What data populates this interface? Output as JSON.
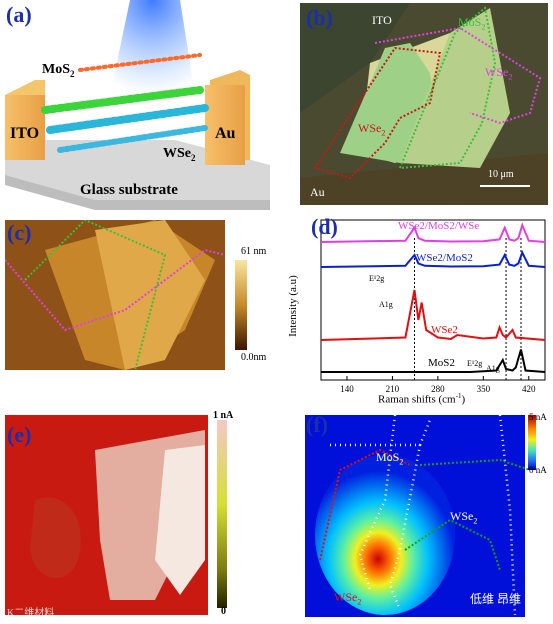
{
  "panels": {
    "a": {
      "label": "(a)",
      "mos2": "MoS",
      "mos2_sub": "2",
      "ito": "ITO",
      "au": "Au",
      "wse2": "WSe",
      "wse2_sub": "2",
      "substrate": "Glass substrate"
    },
    "b": {
      "label": "(b)",
      "ito": "ITO",
      "mos2": "MoS",
      "mos2_sub": "2",
      "wse2_right": "WSe",
      "wse2_right_sub": "2",
      "wse2_left": "WSe",
      "wse2_left_sub": "2",
      "au": "Au",
      "scalebar": "10 μm"
    },
    "c": {
      "label": "(c)",
      "cbar_max": "61 nm",
      "cbar_min": "0.0nm"
    },
    "d": {
      "label": "(d)",
      "ylabel": "Intensity (a.u)",
      "xlabel": "Raman shifts (cm",
      "xlabel_sup": "-1",
      "xlabel_close": ")",
      "series_labels": {
        "hetero_full": "WSe2/MoS2/WSe",
        "hetero": "WSe2/MoS2",
        "wse2": "WSe2",
        "mos2": "MoS2"
      },
      "peak_labels": {
        "e2g_wse2": "E¹2g",
        "a1g_wse2": "A1g",
        "e2g_mos2": "E¹2g",
        "a1g_mos2": "A1g"
      }
    },
    "e": {
      "label": "(e)",
      "cbar_max": "1 nA",
      "cbar_min": "0"
    },
    "f": {
      "label": "(f)",
      "cbar_max": "5 nA",
      "cbar_min": "0 nA",
      "mos2": "MoS",
      "mos2_sub": "2",
      "wse2_right": "WSe",
      "wse2_right_sub": "2",
      "wse2_left": "WSe",
      "wse2_left_sub": "2"
    }
  },
  "watermark": {
    "left": "K二维材料",
    "right": "低维 昂维"
  },
  "colors": {
    "label_blue": "#1a2fa8",
    "magenta": "#e040e0",
    "blue_series": "#0a1fd0",
    "red_series": "#e01010",
    "black_series": "#000000",
    "green_outline": "#3ac03a",
    "red_outline": "#c81818"
  },
  "chart_data": {
    "type": "line",
    "xlabel": "Raman shifts (cm-1)",
    "ylabel": "Intensity (a.u)",
    "xticks": [
      140,
      210,
      280,
      350,
      420
    ],
    "xlim": [
      100,
      445
    ],
    "series": [
      {
        "name": "WSe2/MoS2/WSe",
        "x": [
          100,
          230,
          244,
          250,
          260,
          300,
          350,
          375,
          383,
          390,
          398,
          404,
          410,
          420,
          445
        ],
        "y": [
          0,
          0.05,
          0.55,
          0.15,
          0.05,
          0.02,
          0.03,
          0.1,
          0.55,
          0.1,
          0.05,
          0.15,
          0.65,
          0.05,
          0.0
        ]
      },
      {
        "name": "WSe2/MoS2",
        "x": [
          100,
          230,
          244,
          250,
          260,
          300,
          350,
          375,
          383,
          390,
          398,
          404,
          410,
          420,
          445
        ],
        "y": [
          0,
          0.05,
          0.5,
          0.15,
          0.05,
          0.02,
          0.03,
          0.1,
          0.5,
          0.1,
          0.05,
          0.15,
          0.6,
          0.05,
          0.0
        ]
      },
      {
        "name": "WSe2",
        "x": [
          100,
          230,
          244,
          250,
          255,
          262,
          280,
          300,
          310,
          350,
          370,
          375,
          380,
          385,
          395,
          400,
          445
        ],
        "y": [
          0,
          0.05,
          1.0,
          0.4,
          0.75,
          0.2,
          0.05,
          0.02,
          0.1,
          0.03,
          0.05,
          0.25,
          0.1,
          0.05,
          0.2,
          0.05,
          0.0
        ]
      },
      {
        "name": "MoS2",
        "x": [
          100,
          330,
          370,
          380,
          385,
          395,
          400,
          408,
          415,
          445
        ],
        "y": [
          0,
          0.0,
          0.05,
          0.4,
          0.1,
          0.05,
          0.15,
          0.75,
          0.05,
          0.0
        ]
      }
    ]
  }
}
